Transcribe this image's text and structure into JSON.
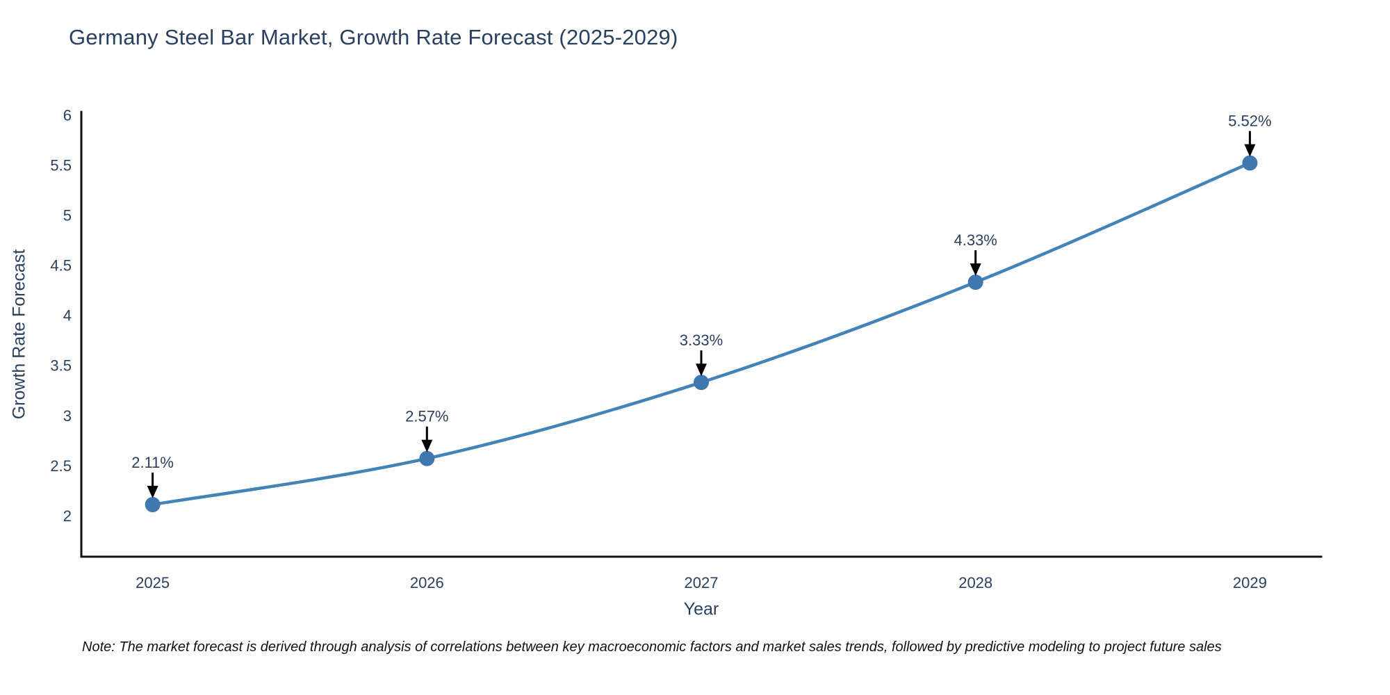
{
  "page": {
    "background": "#ffffff"
  },
  "title": {
    "text": "Germany Steel Bar Market, Growth Rate Forecast (2025-2029)"
  },
  "note": {
    "text": "Note: The market forecast is derived through analysis of correlations between key macroeconomic factors and market sales trends, followed by predictive modeling to project future sales"
  },
  "chart_data": {
    "type": "line",
    "title": "Germany Steel Bar Market, Growth Rate Forecast (2025-2029)",
    "x": [
      2025,
      2026,
      2027,
      2028,
      2029
    ],
    "y": [
      2.11,
      2.57,
      3.33,
      4.33,
      5.52
    ],
    "series": [
      {
        "name": "Growth Rate Forecast",
        "values": [
          2.11,
          2.57,
          3.33,
          4.33,
          5.52
        ]
      }
    ],
    "point_labels": [
      "2.11%",
      "2.57%",
      "3.33%",
      "4.33%",
      "5.52%"
    ],
    "xlabel": "Year",
    "ylabel": "Growth Rate Forecast",
    "xticks": [
      "2025",
      "2026",
      "2027",
      "2028",
      "2029"
    ],
    "yticks": [
      "2",
      "2.5",
      "3",
      "3.5",
      "4",
      "4.5",
      "5",
      "5.5",
      "6"
    ],
    "ytick_values": [
      2,
      2.5,
      3,
      3.5,
      4,
      4.5,
      5,
      5.5,
      6
    ],
    "xlim": [
      2024.74,
      2029.26
    ],
    "ylim": [
      1.59,
      6.03
    ],
    "line_shape": "spline",
    "grid": false,
    "legend_position": "none",
    "annotations_have_arrows": true,
    "colors": {
      "line": "#4383b8",
      "marker": "#3e78ae",
      "arrow": "#000000",
      "axis_line": "#111111",
      "text": "#2a3f5f",
      "note_text": "#111111",
      "background": "#ffffff"
    }
  }
}
